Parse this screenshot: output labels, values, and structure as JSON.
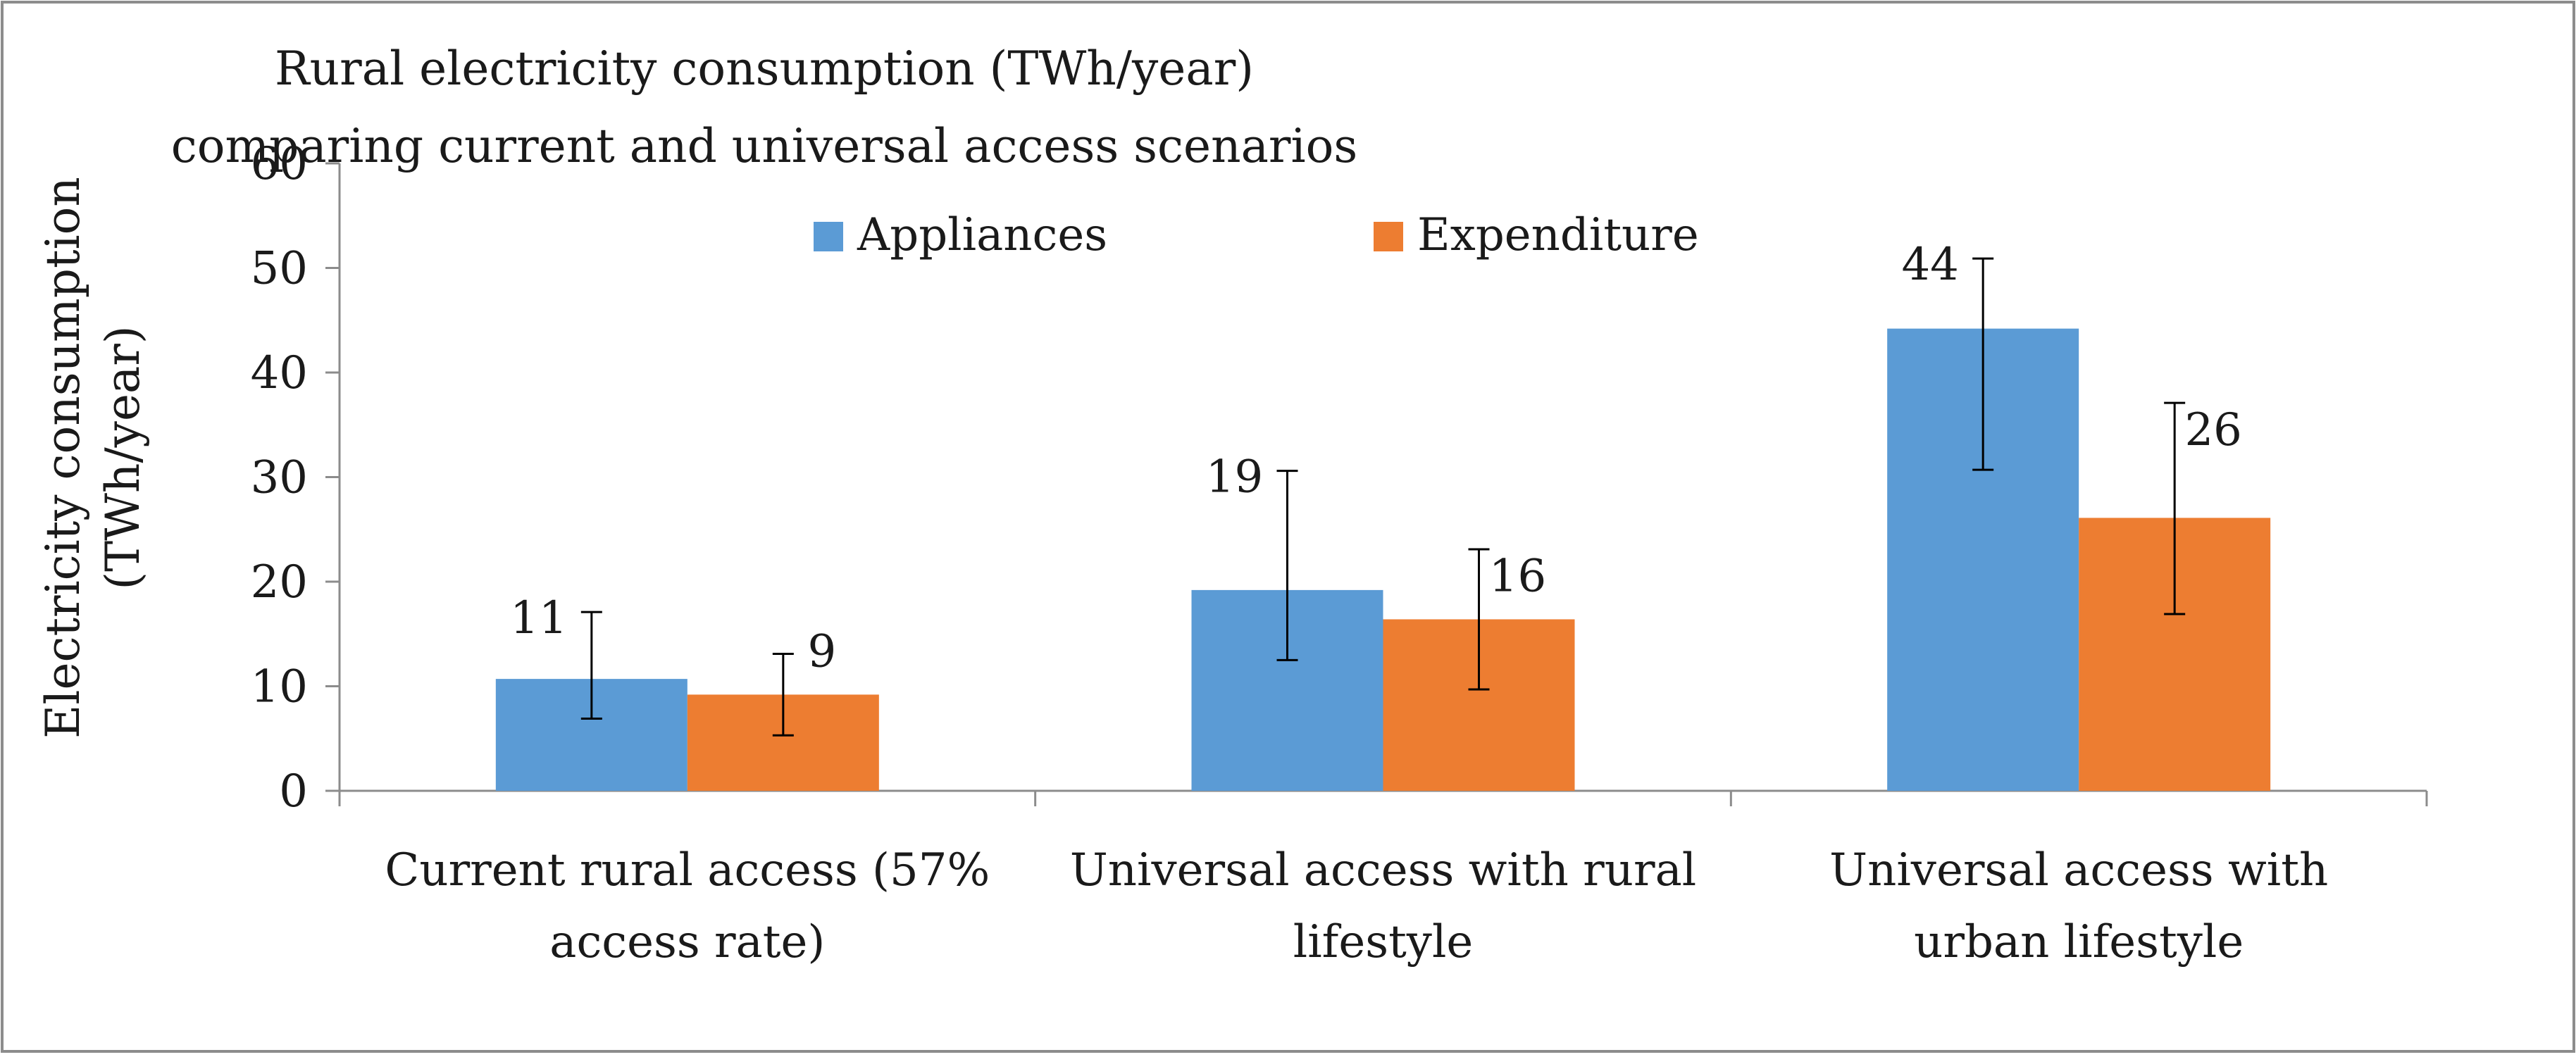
{
  "chart_data": {
    "type": "bar",
    "title": [
      "Rural electricity consumption  (TWh/year)",
      "comparing current and universal access scenarios"
    ],
    "xlabel": "",
    "ylabel": [
      "Electricity consumption",
      "(TWh/year)"
    ],
    "ylim": [
      0,
      60
    ],
    "yticks": [
      0,
      10,
      20,
      30,
      40,
      50,
      60
    ],
    "grid": false,
    "legend_position": "top-center",
    "categories": [
      [
        "Current rural access (57%",
        "access rate)"
      ],
      [
        "Universal access with rural",
        "lifestyle"
      ],
      [
        "Universal access with",
        "urban lifestyle"
      ]
    ],
    "series": [
      {
        "name": "Appliances",
        "color": "#5b9bd5",
        "values": [
          10.7,
          19.2,
          44.2
        ],
        "labels": [
          "11",
          "19",
          "44"
        ],
        "error_low": [
          6.9,
          12.5,
          30.7
        ],
        "error_high": [
          17.1,
          30.6,
          50.9
        ]
      },
      {
        "name": "Expenditure",
        "color": "#ed7d31",
        "values": [
          9.2,
          16.4,
          26.1
        ],
        "labels": [
          "9",
          "16",
          "26"
        ],
        "error_low": [
          5.3,
          9.7,
          16.9
        ],
        "error_high": [
          13.1,
          23.1,
          37.1
        ]
      }
    ]
  }
}
